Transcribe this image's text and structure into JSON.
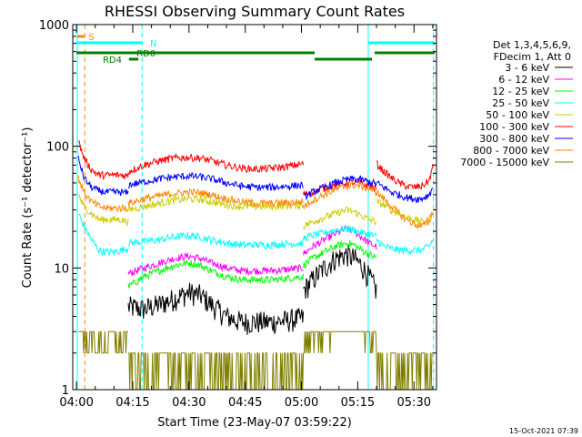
{
  "chart_data": {
    "type": "line",
    "title": "RHESSI Observing Summary Count Rates",
    "xlabel": "Start Time (23-May-07 03:59:22)",
    "ylabel": "Count Rate (s⁻¹ detector⁻¹)",
    "xlim_minutes_after_0400": [
      -1,
      96
    ],
    "ylim": [
      1,
      1000
    ],
    "yscale": "log",
    "x_ticks": [
      {
        "minutes": 0,
        "label": "04:00"
      },
      {
        "minutes": 15,
        "label": "04:15"
      },
      {
        "minutes": 30,
        "label": "04:30"
      },
      {
        "minutes": 45,
        "label": "04:45"
      },
      {
        "minutes": 60,
        "label": "05:00"
      },
      {
        "minutes": 75,
        "label": "05:15"
      },
      {
        "minutes": 90,
        "label": "05:30"
      }
    ],
    "y_ticks": [
      {
        "value": 1,
        "label": "1"
      },
      {
        "value": 10,
        "label": "10"
      },
      {
        "value": 100,
        "label": "100"
      },
      {
        "value": 1000,
        "label": "1000"
      }
    ],
    "legend": {
      "placement": "right",
      "header": [
        "Det 1,3,4,5,6,9,",
        "FDecim 1, Att 0"
      ]
    },
    "series": [
      {
        "name": "3 - 6 keV",
        "color": "#000000",
        "segments": [
          {
            "t": [
              13.8,
              18,
              22,
              26,
              30,
              33,
              36,
              40,
              44,
              48,
              52,
              56,
              60.5
            ],
            "v": [
              4.8,
              4.6,
              5.0,
              5.6,
              6.3,
              6.0,
              5.0,
              4.0,
              3.6,
              3.6,
              3.6,
              3.7,
              3.9
            ]
          },
          {
            "t": [
              60.5,
              63,
              66,
              69,
              72,
              74,
              76,
              78,
              80
            ],
            "v": [
              6.5,
              8.0,
              10,
              12,
              13,
              12,
              10.5,
              8.5,
              6.5
            ]
          }
        ]
      },
      {
        "name": "6 - 12 keV",
        "color": "#ff00ff",
        "segments": [
          {
            "t": [
              13.8,
              18,
              22,
              26,
              30,
              33,
              36,
              40,
              44,
              48,
              52,
              56,
              60.5
            ],
            "v": [
              9.0,
              10.0,
              11.0,
              12.0,
              12.5,
              12.0,
              11.0,
              10.0,
              9.5,
              9.5,
              9.5,
              9.7,
              10.0
            ]
          },
          {
            "t": [
              60.5,
              63,
              66,
              69,
              72,
              74,
              76,
              78,
              80
            ],
            "v": [
              13,
              15,
              17,
              19,
              21,
              20,
              18,
              16,
              15
            ]
          }
        ]
      },
      {
        "name": "12 - 25 keV",
        "color": "#00ff00",
        "segments": [
          {
            "t": [
              13.8,
              18,
              22,
              26,
              30,
              33,
              36,
              40,
              44,
              48,
              52,
              56,
              60.5
            ],
            "v": [
              7.0,
              8.5,
              9.5,
              10.5,
              11.0,
              10.5,
              9.5,
              8.5,
              8.0,
              8.0,
              8.0,
              8.2,
              8.5
            ]
          },
          {
            "t": [
              60.5,
              63,
              66,
              69,
              72,
              74,
              76,
              78,
              80
            ],
            "v": [
              10.5,
              12,
              13.5,
              15,
              16,
              15.5,
              14,
              13,
              12
            ]
          }
        ]
      },
      {
        "name": "25 - 50 keV",
        "color": "#00ffff",
        "segments": [
          {
            "t": [
              0.5,
              2,
              4,
              6,
              8,
              10,
              12,
              13.8
            ],
            "v": [
              28,
              22,
              17,
              14,
              13.5,
              13.5,
              14,
              14.5
            ]
          },
          {
            "t": [
              13.8,
              18,
              22,
              26,
              30,
              33,
              36,
              40,
              44,
              48,
              52,
              56,
              60.5
            ],
            "v": [
              16,
              16.5,
              17,
              18,
              18.5,
              18,
              17,
              16,
              15.5,
              15.5,
              15.5,
              15.8,
              16
            ]
          },
          {
            "t": [
              60.5,
              63,
              66,
              69,
              72,
              74,
              76,
              78,
              80
            ],
            "v": [
              17.5,
              18.5,
              19.5,
              20.5,
              21,
              20.5,
              19.5,
              19,
              18
            ]
          },
          {
            "t": [
              80,
              82,
              84,
              86,
              88,
              90,
              92,
              94,
              95
            ],
            "v": [
              17,
              15,
              14.5,
              14,
              14,
              14,
              14,
              15,
              17
            ]
          }
        ]
      },
      {
        "name": "50 - 100 keV",
        "color": "#cccc00",
        "segments": [
          {
            "t": [
              0.5,
              2,
              4,
              6,
              8,
              10,
              12,
              13.8
            ],
            "v": [
              40,
              32,
              28,
              25,
              25,
              25,
              25,
              24
            ]
          },
          {
            "t": [
              13.8,
              18,
              22,
              26,
              30,
              33,
              36,
              40,
              44,
              48,
              52,
              56,
              60.5
            ],
            "v": [
              30,
              32,
              34,
              36,
              37,
              36.5,
              35,
              33,
              32,
              32,
              32,
              32.5,
              33
            ]
          },
          {
            "t": [
              60.5,
              63,
              66,
              69,
              72,
              74,
              76,
              78,
              80
            ],
            "v": [
              22,
              24,
              26,
              28,
              30,
              29,
              27,
              25,
              24
            ]
          },
          {
            "t": [
              80,
              82,
              84,
              86,
              88,
              90,
              92,
              94,
              95
            ],
            "v": [
              35,
              33,
              30,
              28,
              26,
              25,
              24,
              25,
              30
            ]
          }
        ]
      },
      {
        "name": "100 - 300 keV",
        "color": "#ff0000",
        "segments": [
          {
            "t": [
              0.5,
              2,
              4,
              6,
              8,
              10,
              12,
              13.8
            ],
            "v": [
              110,
              80,
              64,
              58,
              58,
              58,
              58,
              57
            ]
          },
          {
            "t": [
              13.8,
              18,
              22,
              26,
              30,
              33,
              36,
              40,
              44,
              48,
              52,
              56,
              60.5
            ],
            "v": [
              62,
              70,
              76,
              80,
              81,
              80,
              76,
              70,
              66,
              65,
              66,
              68,
              72
            ]
          },
          {
            "t": [
              60.5,
              63,
              66,
              69,
              72,
              74,
              76,
              78,
              80
            ],
            "v": [
              40,
              42,
              45,
              48,
              50,
              50,
              49,
              47,
              45
            ]
          },
          {
            "t": [
              80,
              82,
              84,
              86,
              88,
              90,
              92,
              94,
              95
            ],
            "v": [
              72,
              62,
              55,
              50,
              47,
              46,
              47,
              52,
              68
            ]
          }
        ]
      },
      {
        "name": "300 - 800 keV",
        "color": "#0000ff",
        "segments": [
          {
            "t": [
              0.5,
              2,
              4,
              6,
              8,
              10,
              12,
              13.8
            ],
            "v": [
              80,
              55,
              46,
              43,
              42,
              42,
              42,
              41
            ]
          },
          {
            "t": [
              13.8,
              18,
              22,
              26,
              30,
              33,
              36,
              40,
              44,
              48,
              52,
              56,
              60.5
            ],
            "v": [
              48,
              51,
              54,
              56,
              57,
              56,
              54,
              50,
              47,
              46,
              46,
              47,
              48
            ]
          },
          {
            "t": [
              60.5,
              63,
              66,
              69,
              72,
              74,
              76,
              78,
              80
            ],
            "v": [
              38,
              42,
              46,
              50,
              53,
              54,
              53,
              51,
              49
            ]
          },
          {
            "t": [
              80,
              82,
              84,
              86,
              88,
              90,
              92,
              94,
              95
            ],
            "v": [
              50,
              46,
              42,
              40,
              38,
              37,
              37,
              40,
              46
            ]
          }
        ]
      },
      {
        "name": "800 - 7000 keV",
        "color": "#ff8800",
        "segments": [
          {
            "t": [
              0.5,
              2,
              4,
              6,
              8,
              10,
              12,
              13.8
            ],
            "v": [
              55,
              42,
              35,
              32,
              31,
              31,
              31,
              31
            ]
          },
          {
            "t": [
              13.8,
              18,
              22,
              26,
              30,
              33,
              36,
              40,
              44,
              48,
              52,
              56,
              60.5
            ],
            "v": [
              34,
              37,
              39,
              41,
              42,
              41.5,
              40,
              37,
              35,
              34,
              34,
              34.5,
              35
            ]
          },
          {
            "t": [
              60.5,
              63,
              66,
              69,
              72,
              74,
              76,
              78,
              80
            ],
            "v": [
              32,
              36,
              40,
              44,
              47,
              48,
              47,
              45,
              42
            ]
          },
          {
            "t": [
              80,
              82,
              84,
              86,
              88,
              90,
              92,
              94,
              95
            ],
            "v": [
              42,
              37,
              32,
              28,
              25,
              23,
              22,
              24,
              29
            ]
          }
        ]
      },
      {
        "name": "7000 - 15000 keV",
        "color": "#808000",
        "segments": [
          {
            "t": [
              0.5,
              2,
              4,
              6,
              8,
              10,
              12,
              13.8
            ],
            "v": [
              4.5,
              3.0,
              2.5,
              2.5,
              2.5,
              2.5,
              2.5,
              2.5
            ]
          },
          {
            "t": [
              13.8,
              18,
              22,
              26,
              30,
              33,
              36,
              40,
              44,
              48,
              52,
              56,
              60.5
            ],
            "v": [
              1.6,
              1.6,
              1.6,
              1.6,
              1.6,
              1.6,
              1.6,
              1.5,
              1.4,
              1.4,
              1.4,
              1.4,
              1.5
            ]
          },
          {
            "t": [
              60.5,
              63,
              66,
              69,
              72,
              74,
              76,
              78,
              80
            ],
            "v": [
              2.2,
              2.6,
              3.0,
              3.3,
              3.5,
              3.4,
              3.2,
              3.0,
              2.8
            ]
          },
          {
            "t": [
              80,
              82,
              84,
              86,
              88,
              90,
              92,
              94,
              95
            ],
            "v": [
              1.7,
              1.6,
              1.6,
              1.6,
              1.6,
              1.6,
              1.6,
              1.6,
              1.7
            ]
          }
        ]
      }
    ],
    "vertical_markers": [
      {
        "t": 0.2,
        "color": "#00ffff",
        "style": "solid"
      },
      {
        "t": 2.2,
        "color": "#ff8800",
        "style": "dashed"
      },
      {
        "t": 17.5,
        "color": "#00ffff",
        "style": "dashed"
      },
      {
        "t": 77.8,
        "color": "#00ffff",
        "style": "solid"
      },
      {
        "t": 95.2,
        "color": "#00ffff",
        "style": "dashed"
      }
    ],
    "flag_bars": [
      {
        "label": "S",
        "color": "#ff8800",
        "row": 0,
        "label_t": 3.2,
        "ranges": [
          [
            0.3,
            2.2
          ]
        ]
      },
      {
        "label": "N",
        "color": "#00ffff",
        "row": 1,
        "label_t": 19.6,
        "ranges": [
          [
            0,
            17.5
          ],
          [
            77.8,
            95.5
          ]
        ]
      },
      {
        "label": "RD0",
        "color": "#008000",
        "row": 2,
        "label_t": 16.0,
        "ranges": [
          [
            0,
            63.5
          ],
          [
            79.5,
            95.5
          ]
        ]
      },
      {
        "label": "RD4",
        "color": "#008000",
        "row": 3,
        "label_t": 7.0,
        "ranges": [
          [
            14.0,
            16.5
          ],
          [
            63.5,
            78.8
          ]
        ]
      }
    ],
    "footer_timestamp": "15-Oct-2021 07:39"
  }
}
